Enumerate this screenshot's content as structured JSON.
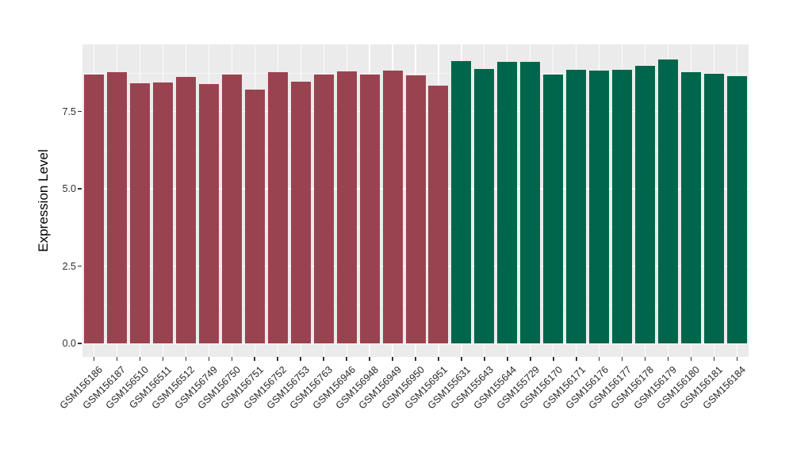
{
  "chart_data": {
    "type": "bar",
    "title": "",
    "xlabel": "",
    "ylabel": "Expression Level",
    "ylim": [
      0,
      9.65
    ],
    "grid": true,
    "legend": "none",
    "panel_bg": "#EBEBEB",
    "grid_major_color": "#FFFFFF",
    "grid_minor_color": "#F7F7F7",
    "axis_text_color": "#303030",
    "yticks": [
      {
        "label": "0.0",
        "value": 0.0
      },
      {
        "label": "2.5",
        "value": 2.5
      },
      {
        "label": "5.0",
        "value": 5.0
      },
      {
        "label": "7.5",
        "value": 7.5
      }
    ],
    "minor_yticks": [
      1.25,
      3.75,
      6.25,
      8.75
    ],
    "group_colors": {
      "left": "#9A4350",
      "right": "#00664B"
    },
    "bars": [
      {
        "label": "GSM156186",
        "value": 8.7,
        "group": "left"
      },
      {
        "label": "GSM156187",
        "value": 8.78,
        "group": "left"
      },
      {
        "label": "GSM156510",
        "value": 8.42,
        "group": "left"
      },
      {
        "label": "GSM156511",
        "value": 8.43,
        "group": "left"
      },
      {
        "label": "GSM156512",
        "value": 8.63,
        "group": "left"
      },
      {
        "label": "GSM156749",
        "value": 8.4,
        "group": "left"
      },
      {
        "label": "GSM156750",
        "value": 8.7,
        "group": "left"
      },
      {
        "label": "GSM156751",
        "value": 8.2,
        "group": "left"
      },
      {
        "label": "GSM156752",
        "value": 8.77,
        "group": "left"
      },
      {
        "label": "GSM156753",
        "value": 8.48,
        "group": "left"
      },
      {
        "label": "GSM156763",
        "value": 8.7,
        "group": "left"
      },
      {
        "label": "GSM156946",
        "value": 8.8,
        "group": "left"
      },
      {
        "label": "GSM156948",
        "value": 8.7,
        "group": "left"
      },
      {
        "label": "GSM156949",
        "value": 8.83,
        "group": "left"
      },
      {
        "label": "GSM156950",
        "value": 8.67,
        "group": "left"
      },
      {
        "label": "GSM156951",
        "value": 8.35,
        "group": "left"
      },
      {
        "label": "GSM155631",
        "value": 9.13,
        "group": "right"
      },
      {
        "label": "GSM155643",
        "value": 8.89,
        "group": "right"
      },
      {
        "label": "GSM155644",
        "value": 9.12,
        "group": "right"
      },
      {
        "label": "GSM155729",
        "value": 9.12,
        "group": "right"
      },
      {
        "label": "GSM156170",
        "value": 8.7,
        "group": "right"
      },
      {
        "label": "GSM156171",
        "value": 8.86,
        "group": "right"
      },
      {
        "label": "GSM156176",
        "value": 8.83,
        "group": "right"
      },
      {
        "label": "GSM156177",
        "value": 8.86,
        "group": "right"
      },
      {
        "label": "GSM156178",
        "value": 8.97,
        "group": "right"
      },
      {
        "label": "GSM156179",
        "value": 9.19,
        "group": "right"
      },
      {
        "label": "GSM156180",
        "value": 8.78,
        "group": "right"
      },
      {
        "label": "GSM156181",
        "value": 8.72,
        "group": "right"
      },
      {
        "label": "GSM156184",
        "value": 8.66,
        "group": "right"
      }
    ]
  }
}
